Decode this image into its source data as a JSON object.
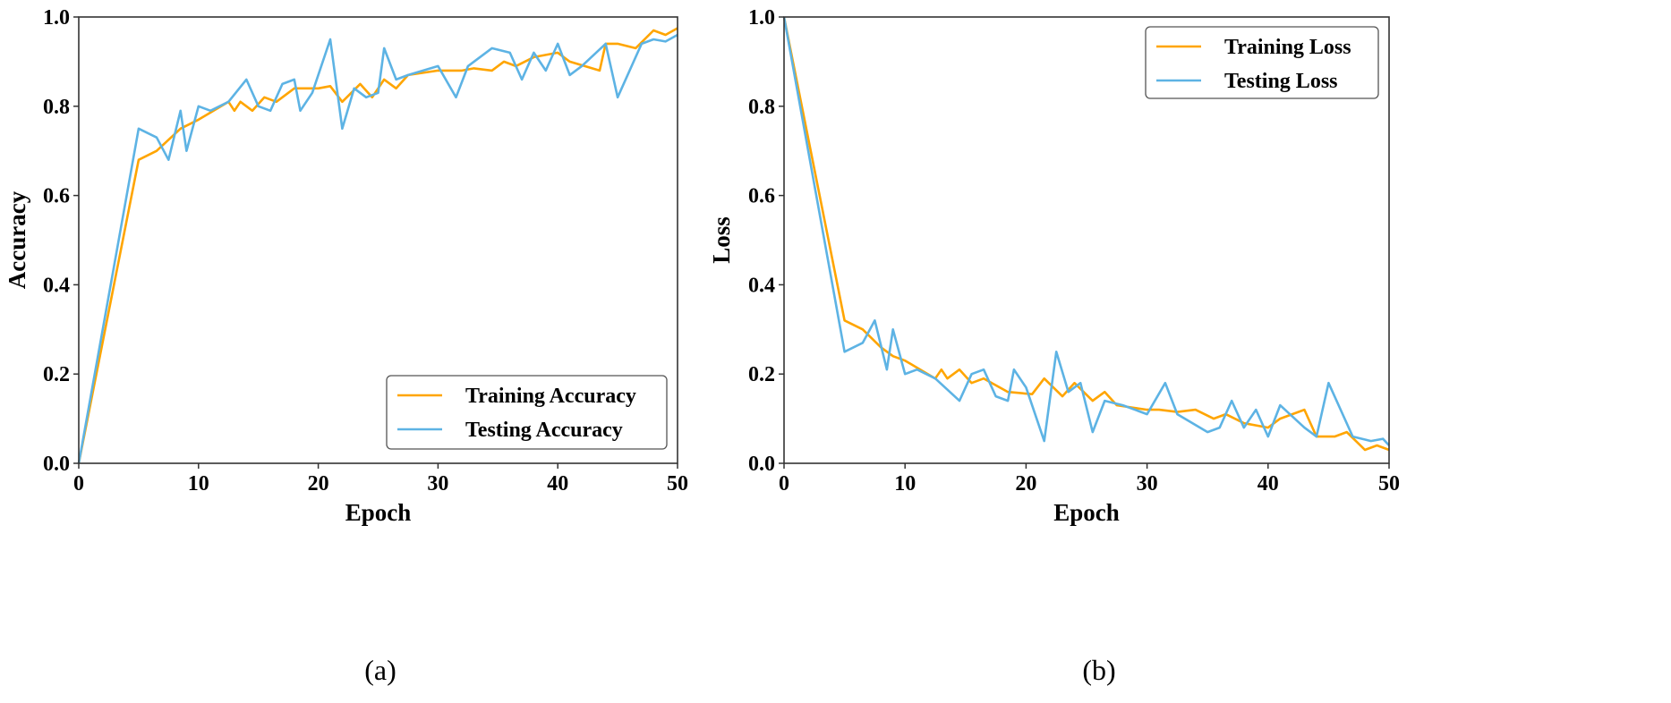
{
  "colors": {
    "training": "#FFA500",
    "testing": "#5DB3E4",
    "axis": "#333333"
  },
  "chart_data": [
    {
      "type": "line",
      "caption": "(a)",
      "xlabel": "Epoch",
      "ylabel": "Accuracy",
      "xlim": [
        0,
        50
      ],
      "ylim": [
        0,
        1.0
      ],
      "xticks": [
        "0",
        "10",
        "20",
        "30",
        "40",
        "50"
      ],
      "yticks": [
        "0.0",
        "0.2",
        "0.4",
        "0.6",
        "0.8",
        "1.0"
      ],
      "grid": false,
      "legend_position": "bottom-right",
      "series": [
        {
          "name": "Training Accuracy",
          "color": "#FFA500",
          "points": [
            [
              0,
              0
            ],
            [
              5,
              0.68
            ],
            [
              6.5,
              0.7
            ],
            [
              8.5,
              0.75
            ],
            [
              10,
              0.77
            ],
            [
              12.5,
              0.81
            ],
            [
              13,
              0.79
            ],
            [
              13.5,
              0.81
            ],
            [
              14.5,
              0.79
            ],
            [
              15.5,
              0.82
            ],
            [
              16.5,
              0.81
            ],
            [
              18,
              0.84
            ],
            [
              20,
              0.84
            ],
            [
              21,
              0.845
            ],
            [
              22,
              0.81
            ],
            [
              23.5,
              0.85
            ],
            [
              24.5,
              0.82
            ],
            [
              25.5,
              0.86
            ],
            [
              26.5,
              0.84
            ],
            [
              27.5,
              0.87
            ],
            [
              30,
              0.88
            ],
            [
              32,
              0.88
            ],
            [
              33,
              0.885
            ],
            [
              34.5,
              0.88
            ],
            [
              35.5,
              0.9
            ],
            [
              36.5,
              0.89
            ],
            [
              38,
              0.91
            ],
            [
              40,
              0.92
            ],
            [
              41,
              0.9
            ],
            [
              43.5,
              0.88
            ],
            [
              44,
              0.94
            ],
            [
              45,
              0.94
            ],
            [
              46.5,
              0.93
            ],
            [
              48,
              0.97
            ],
            [
              49,
              0.96
            ],
            [
              50,
              0.975
            ]
          ]
        },
        {
          "name": "Testing Accuracy",
          "color": "#5DB3E4",
          "points": [
            [
              0,
              0
            ],
            [
              5,
              0.75
            ],
            [
              6.5,
              0.73
            ],
            [
              7.5,
              0.68
            ],
            [
              8.5,
              0.79
            ],
            [
              9,
              0.7
            ],
            [
              10,
              0.8
            ],
            [
              11,
              0.79
            ],
            [
              12.5,
              0.81
            ],
            [
              14,
              0.86
            ],
            [
              15,
              0.8
            ],
            [
              16,
              0.79
            ],
            [
              17,
              0.85
            ],
            [
              18,
              0.86
            ],
            [
              18.5,
              0.79
            ],
            [
              19.5,
              0.83
            ],
            [
              21,
              0.95
            ],
            [
              22,
              0.75
            ],
            [
              23,
              0.84
            ],
            [
              24,
              0.82
            ],
            [
              25,
              0.83
            ],
            [
              25.5,
              0.93
            ],
            [
              26.5,
              0.86
            ],
            [
              27.5,
              0.87
            ],
            [
              30,
              0.89
            ],
            [
              31.5,
              0.82
            ],
            [
              32.5,
              0.89
            ],
            [
              34.5,
              0.93
            ],
            [
              36,
              0.92
            ],
            [
              37,
              0.86
            ],
            [
              38,
              0.92
            ],
            [
              39,
              0.88
            ],
            [
              40,
              0.94
            ],
            [
              41,
              0.87
            ],
            [
              42,
              0.89
            ],
            [
              44,
              0.94
            ],
            [
              45,
              0.82
            ],
            [
              47,
              0.94
            ],
            [
              48,
              0.95
            ],
            [
              49,
              0.945
            ],
            [
              50,
              0.96
            ]
          ]
        }
      ]
    },
    {
      "type": "line",
      "caption": "(b)",
      "xlabel": "Epoch",
      "ylabel": "Loss",
      "xlim": [
        0,
        50
      ],
      "ylim": [
        0,
        1.0
      ],
      "xticks": [
        "0",
        "10",
        "20",
        "30",
        "40",
        "50"
      ],
      "yticks": [
        "0.0",
        "0.2",
        "0.4",
        "0.6",
        "0.8",
        "1.0"
      ],
      "grid": false,
      "legend_position": "top-right",
      "series": [
        {
          "name": "Training Loss",
          "color": "#FFA500",
          "points": [
            [
              0,
              1.0
            ],
            [
              5,
              0.32
            ],
            [
              6.5,
              0.3
            ],
            [
              8,
              0.26
            ],
            [
              9,
              0.24
            ],
            [
              10,
              0.23
            ],
            [
              12.5,
              0.19
            ],
            [
              13,
              0.21
            ],
            [
              13.5,
              0.19
            ],
            [
              14.5,
              0.21
            ],
            [
              15.5,
              0.18
            ],
            [
              16.5,
              0.19
            ],
            [
              18.5,
              0.16
            ],
            [
              20.5,
              0.155
            ],
            [
              21.5,
              0.19
            ],
            [
              23,
              0.15
            ],
            [
              24,
              0.18
            ],
            [
              25.5,
              0.14
            ],
            [
              26.5,
              0.16
            ],
            [
              27.5,
              0.13
            ],
            [
              30,
              0.12
            ],
            [
              31,
              0.12
            ],
            [
              32.5,
              0.115
            ],
            [
              34,
              0.12
            ],
            [
              35.5,
              0.1
            ],
            [
              36.5,
              0.11
            ],
            [
              38,
              0.09
            ],
            [
              40,
              0.08
            ],
            [
              41,
              0.1
            ],
            [
              43,
              0.12
            ],
            [
              44,
              0.06
            ],
            [
              45.5,
              0.06
            ],
            [
              46.5,
              0.07
            ],
            [
              48,
              0.03
            ],
            [
              49,
              0.04
            ],
            [
              50,
              0.03
            ]
          ]
        },
        {
          "name": "Testing Loss",
          "color": "#5DB3E4",
          "points": [
            [
              0,
              1.0
            ],
            [
              5,
              0.25
            ],
            [
              6.5,
              0.27
            ],
            [
              7.5,
              0.32
            ],
            [
              8.5,
              0.21
            ],
            [
              9,
              0.3
            ],
            [
              10,
              0.2
            ],
            [
              11,
              0.21
            ],
            [
              12.5,
              0.19
            ],
            [
              14.5,
              0.14
            ],
            [
              15.5,
              0.2
            ],
            [
              16.5,
              0.21
            ],
            [
              17.5,
              0.15
            ],
            [
              18.5,
              0.14
            ],
            [
              19,
              0.21
            ],
            [
              20,
              0.17
            ],
            [
              21.5,
              0.05
            ],
            [
              22.5,
              0.25
            ],
            [
              23.5,
              0.16
            ],
            [
              24.5,
              0.18
            ],
            [
              25.5,
              0.07
            ],
            [
              26.5,
              0.14
            ],
            [
              28,
              0.13
            ],
            [
              30,
              0.11
            ],
            [
              31.5,
              0.18
            ],
            [
              32.5,
              0.11
            ],
            [
              35,
              0.07
            ],
            [
              36,
              0.08
            ],
            [
              37,
              0.14
            ],
            [
              38,
              0.08
            ],
            [
              39,
              0.12
            ],
            [
              40,
              0.06
            ],
            [
              41,
              0.13
            ],
            [
              43,
              0.08
            ],
            [
              44,
              0.06
            ],
            [
              45,
              0.18
            ],
            [
              47,
              0.06
            ],
            [
              48.5,
              0.05
            ],
            [
              49.5,
              0.055
            ],
            [
              50,
              0.04
            ]
          ]
        }
      ]
    }
  ]
}
